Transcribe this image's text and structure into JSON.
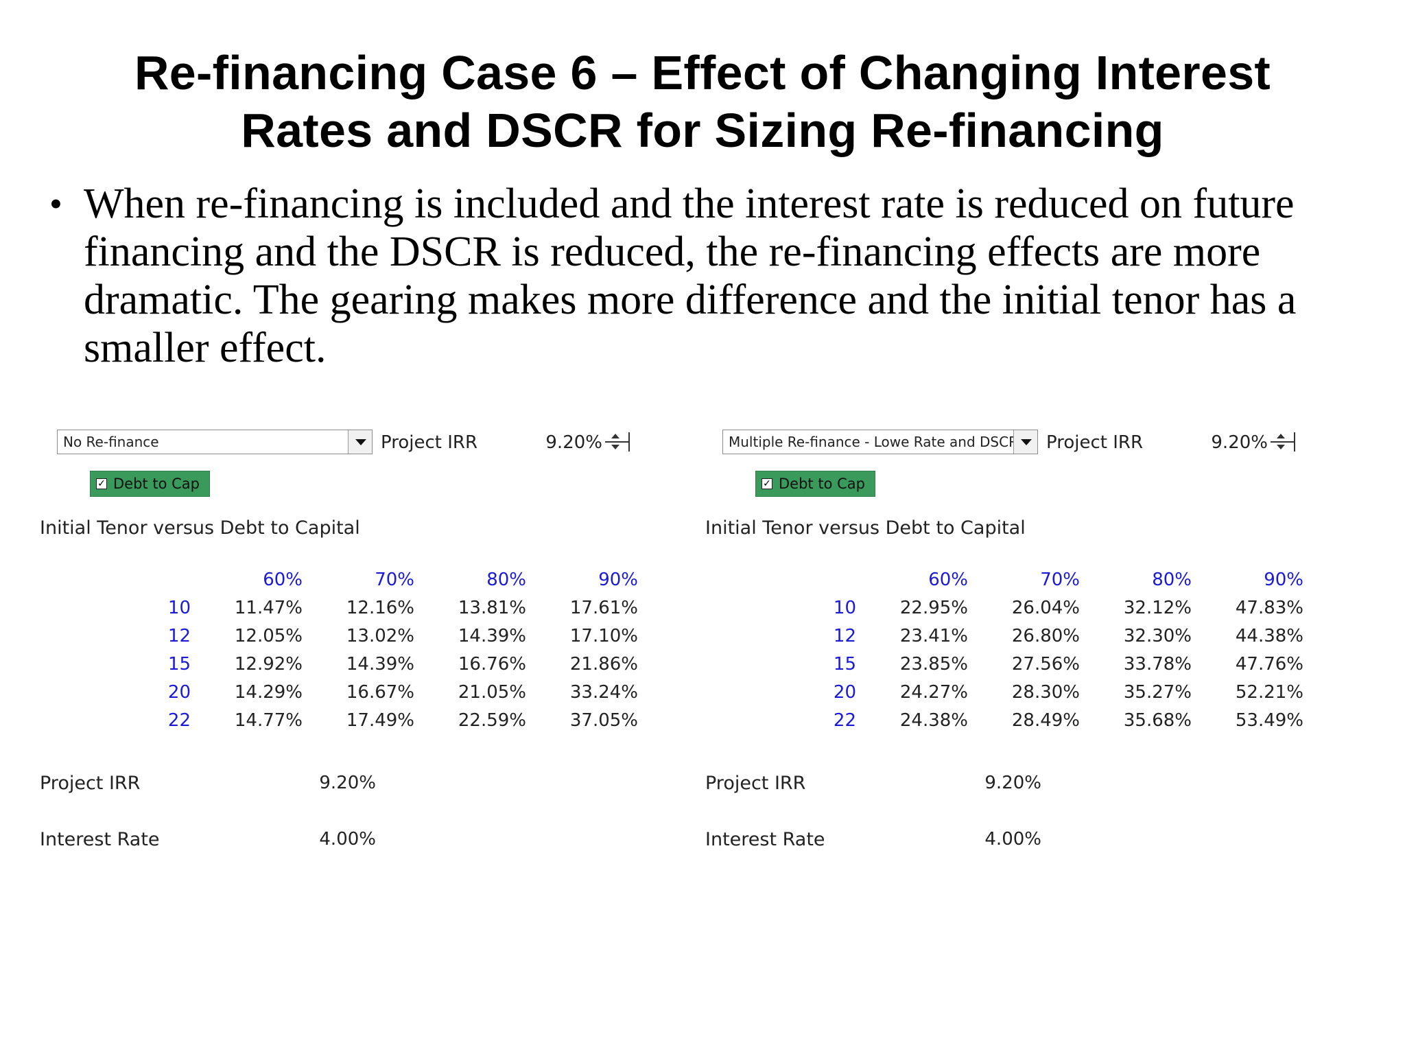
{
  "slide": {
    "title_line1": "Re-financing Case 6 – Effect of Changing Interest",
    "title_line2": "Rates and DSCR for Sizing Re-financing",
    "bullet": "When re-financing is included and the interest rate is reduced on future financing and the DSCR is reduced, the re-financing effects are more dramatic.  The gearing makes more difference and the initial tenor has a smaller effect."
  },
  "icons": {
    "dropdown": "chevron-down-icon",
    "spinner": "spinner-icon",
    "checkbox": "checkbox-checked-icon"
  },
  "colors": {
    "header_blue": "#1a1ad8",
    "button_green": "#3a9a5b"
  },
  "panels": [
    {
      "dropdown_value": "No Re-finance",
      "project_irr_label": "Project IRR",
      "project_irr_value": "9.20%",
      "checkbox_label": "Debt to Cap",
      "checkbox_checked": true,
      "table_title": "Initial Tenor versus Debt to Capital",
      "columns": [
        "60%",
        "70%",
        "80%",
        "90%"
      ],
      "rows": [
        {
          "tenor": "10",
          "values": [
            "11.47%",
            "12.16%",
            "13.81%",
            "17.61%"
          ]
        },
        {
          "tenor": "12",
          "values": [
            "12.05%",
            "13.02%",
            "14.39%",
            "17.10%"
          ]
        },
        {
          "tenor": "15",
          "values": [
            "12.92%",
            "14.39%",
            "16.76%",
            "21.86%"
          ]
        },
        {
          "tenor": "20",
          "values": [
            "14.29%",
            "16.67%",
            "21.05%",
            "33.24%"
          ]
        },
        {
          "tenor": "22",
          "values": [
            "14.77%",
            "17.49%",
            "22.59%",
            "37.05%"
          ]
        }
      ],
      "footer": [
        {
          "label": "Project IRR",
          "value": "9.20%"
        },
        {
          "label": "Interest Rate",
          "value": "4.00%"
        }
      ]
    },
    {
      "dropdown_value": "Multiple Re-finance - Lowe Rate and DSCR",
      "project_irr_label": "Project IRR",
      "project_irr_value": "9.20%",
      "checkbox_label": "Debt to Cap",
      "checkbox_checked": true,
      "table_title": "Initial Tenor versus Debt to Capital",
      "columns": [
        "60%",
        "70%",
        "80%",
        "90%"
      ],
      "rows": [
        {
          "tenor": "10",
          "values": [
            "22.95%",
            "26.04%",
            "32.12%",
            "47.83%"
          ]
        },
        {
          "tenor": "12",
          "values": [
            "23.41%",
            "26.80%",
            "32.30%",
            "44.38%"
          ]
        },
        {
          "tenor": "15",
          "values": [
            "23.85%",
            "27.56%",
            "33.78%",
            "47.76%"
          ]
        },
        {
          "tenor": "20",
          "values": [
            "24.27%",
            "28.30%",
            "35.27%",
            "52.21%"
          ]
        },
        {
          "tenor": "22",
          "values": [
            "24.38%",
            "28.49%",
            "35.68%",
            "53.49%"
          ]
        }
      ],
      "footer": [
        {
          "label": "Project IRR",
          "value": "9.20%"
        },
        {
          "label": "Interest Rate",
          "value": "4.00%"
        }
      ]
    }
  ]
}
